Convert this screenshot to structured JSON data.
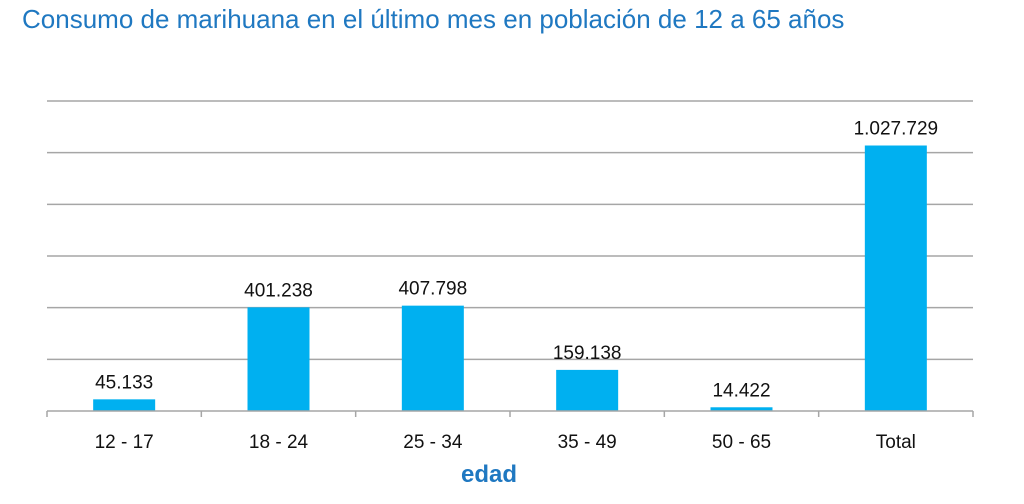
{
  "chart_data": {
    "type": "bar",
    "title": "Consumo de marihuana en el último mes en población de 12 a 65 años",
    "xlabel": "edad",
    "ylabel": "",
    "categories": [
      "12 - 17",
      "18 - 24",
      "25 - 34",
      "35 - 49",
      "50 - 65",
      "Total"
    ],
    "values": [
      45133,
      401238,
      407798,
      159138,
      14422,
      1027729
    ],
    "data_labels": [
      "45.133",
      "401.238",
      "407.798",
      "159.138",
      "14.422",
      "1.027.729"
    ],
    "ylim": [
      0,
      1200000
    ],
    "grid": true,
    "legend": "none",
    "bar_color": "#00b0f0",
    "title_color": "#1f78c1"
  }
}
